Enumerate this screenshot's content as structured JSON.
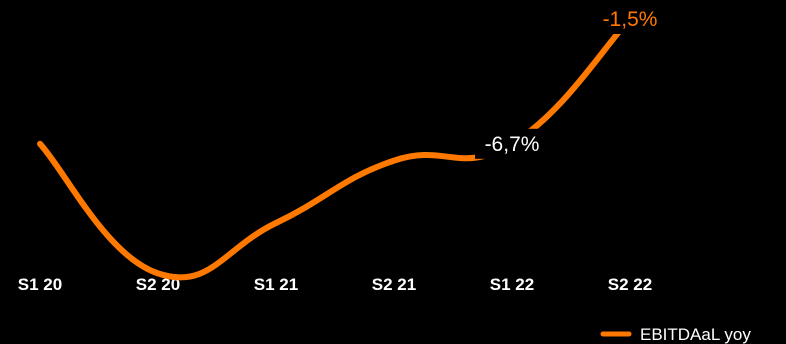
{
  "chart_data": {
    "type": "line",
    "title": "",
    "xlabel": "",
    "ylabel": "",
    "categories": [
      "S1 20",
      "S2 20",
      "S1 21",
      "S2 21",
      "S1 22",
      "S2 22"
    ],
    "series": [
      {
        "name": "EBITDAaL yoy",
        "values": [
          -6.7,
          -12.1,
          -10.0,
          -7.4,
          -6.7,
          -1.5
        ],
        "color": "#FF7900"
      }
    ],
    "data_labels": [
      {
        "index": 4,
        "text": "-6,7%",
        "color": "#ffffff",
        "background": "#000000"
      },
      {
        "index": 5,
        "text": "-1,5%",
        "color": "#FF7900",
        "background": "#000000"
      }
    ],
    "ylim": [
      -12.5,
      -1.0
    ],
    "grid": false,
    "legend_position": "bottom-right"
  }
}
